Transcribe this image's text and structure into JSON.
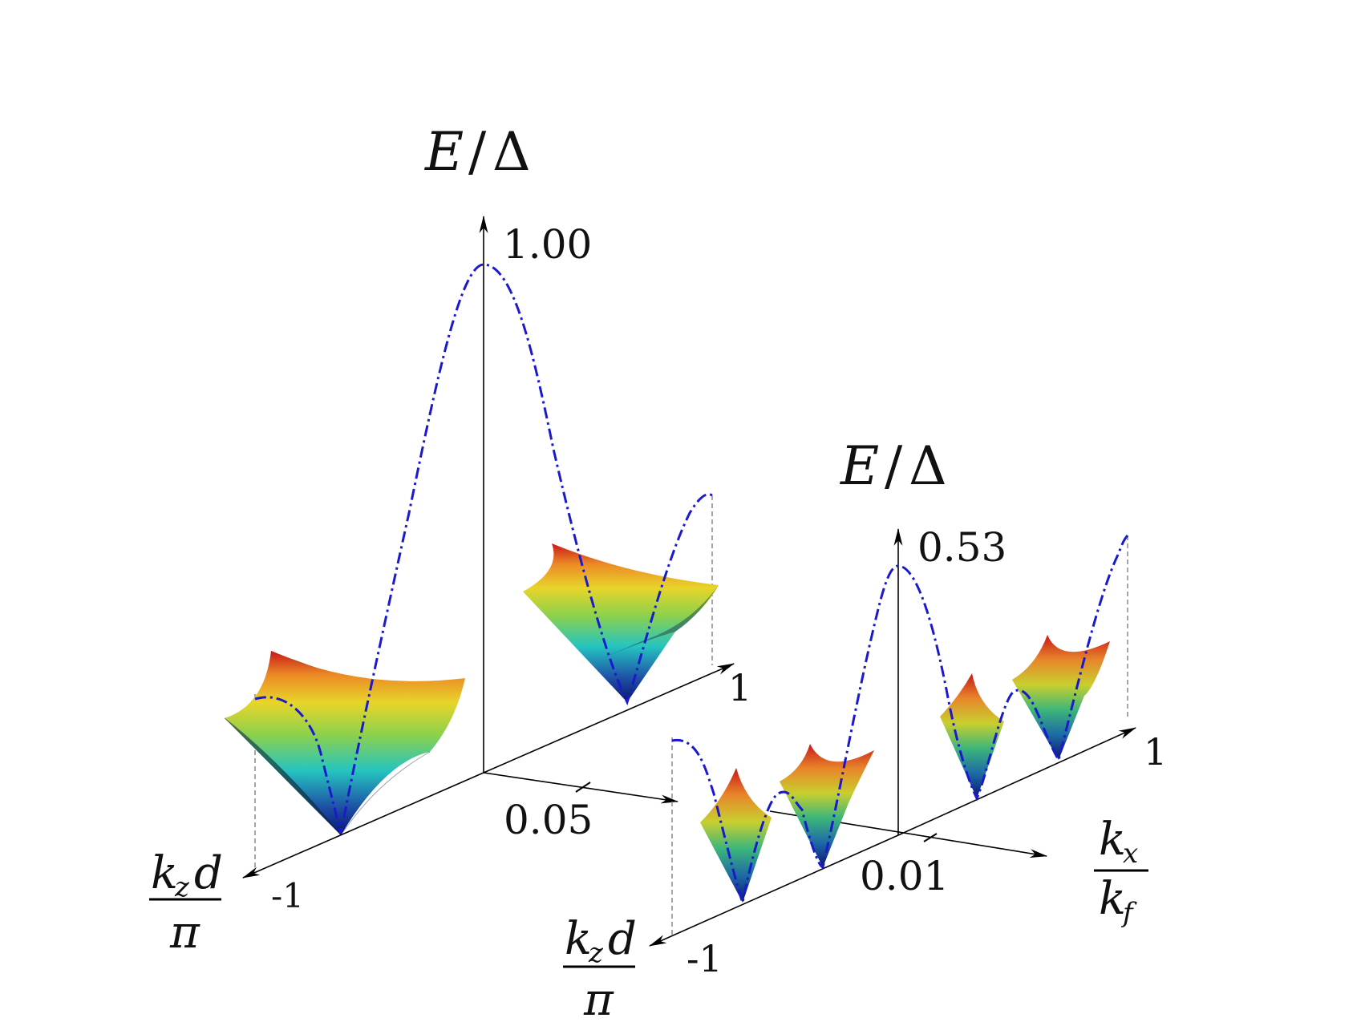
{
  "colors": {
    "axis": "#000000",
    "envelope": "#1a1acc",
    "guide": "#888888",
    "surface_low": "#0a1470",
    "surface_mid": "#25c4c0",
    "surface_high": "#d42020"
  },
  "icons": [
    "arrowhead"
  ],
  "left_panel": {
    "axis_label_E": "E",
    "axis_label_slash": "/",
    "axis_label_delta": "Δ",
    "e_max": "1.00",
    "kx_tick": "0.05",
    "kz_min": "-1",
    "kz_max": "1",
    "kz_num": "k",
    "kz_sub": "z",
    "kz_d": "d",
    "kz_den": "π"
  },
  "right_panel": {
    "axis_label_E": "E",
    "axis_label_slash": "/",
    "axis_label_delta": "Δ",
    "e_max": "0.53",
    "kx_tick": "0.01",
    "kz_min": "-1",
    "kz_max": "1",
    "kz_num": "k",
    "kz_sub": "z",
    "kz_d": "d",
    "kz_den": "π",
    "kx_num": "k",
    "kx_num_sub": "x",
    "kx_den": "k",
    "kx_den_sub": "f"
  }
}
